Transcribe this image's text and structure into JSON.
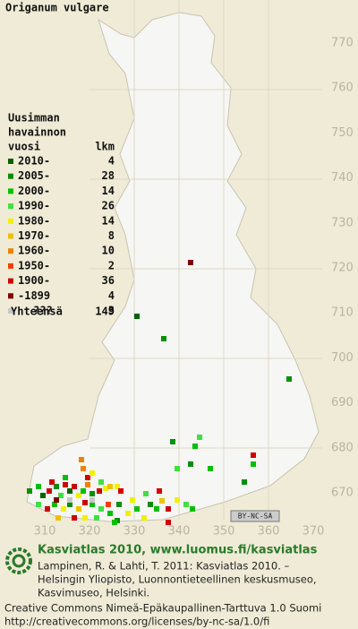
{
  "title": "Origanum vulgare",
  "map": {
    "y_labels": [
      "770",
      "760",
      "750",
      "740",
      "730",
      "720",
      "710",
      "700",
      "690",
      "680",
      "670"
    ],
    "x_labels": [
      "310",
      "320",
      "330",
      "340",
      "350",
      "360",
      "370"
    ],
    "license_badge": "BY-NC-SA"
  },
  "legend": {
    "heading": [
      "Uusimman",
      "havainnon",
      "vuosi"
    ],
    "count_header": "lkm",
    "rows": [
      {
        "label": "2010-",
        "count": 4,
        "color": "#006400"
      },
      {
        "label": "2005-",
        "count": 28,
        "color": "#009000"
      },
      {
        "label": "2000-",
        "count": 14,
        "color": "#00c000"
      },
      {
        "label": "1990-",
        "count": 26,
        "color": "#40e040"
      },
      {
        "label": "1980-",
        "count": 14,
        "color": "#f0f000"
      },
      {
        "label": "1970-",
        "count": 8,
        "color": "#f0c000"
      },
      {
        "label": "1960-",
        "count": 10,
        "color": "#f08000"
      },
      {
        "label": "1950-",
        "count": 2,
        "color": "#f04000"
      },
      {
        "label": "1900-",
        "count": 36,
        "color": "#d00000"
      },
      {
        "label": "-1899",
        "count": 4,
        "color": "#800000"
      },
      {
        "label": "???",
        "count": 3,
        "color": "#c8c8c8"
      }
    ],
    "total_label": "Yhteensä",
    "total": 149
  },
  "footer": {
    "site": "Kasviatlas 2010, www.luomus.fi/kasviatlas",
    "citation": [
      "Lampinen, R. & Lahti, T. 2011: Kasviatlas 2010. –",
      "Helsingin Yliopisto, Luonnontieteellinen keskusmuseo,",
      "Kasvimuseo, Helsinki."
    ],
    "license": [
      "Creative Commons Nimeä-Epäkaupallinen-Tarttuva 1.0 Suomi",
      "http://creativecommons.org/licenses/by-nc-sa/1.0/fi"
    ]
  }
}
